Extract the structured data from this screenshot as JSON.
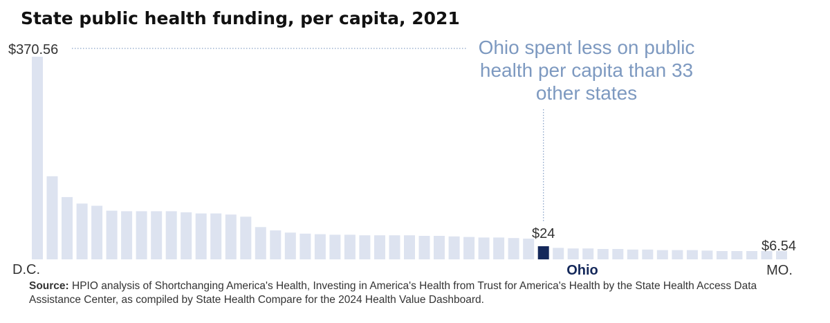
{
  "chart_data": {
    "type": "bar",
    "title": "State public health funding, per capita, 2021",
    "values": [
      370.56,
      152,
      114,
      102,
      98,
      89,
      88,
      88,
      88,
      88,
      86,
      84,
      84,
      82,
      78,
      59,
      53,
      49,
      47,
      46,
      45,
      45,
      44,
      44,
      44,
      44,
      43,
      43,
      42,
      41,
      40,
      40,
      39,
      38,
      24,
      21,
      20,
      20,
      19,
      19,
      18,
      18,
      17,
      17,
      17,
      16,
      15,
      15,
      14,
      13,
      6.54
    ],
    "highlight_index": 34,
    "labels": {
      "max_value": "$370.56",
      "min_value": "$6.54",
      "highlight_value": "$24",
      "first_category": "D.C.",
      "highlight_category": "Ohio",
      "last_category": "MO."
    },
    "annotation": [
      "Ohio spent less on public",
      "health per capita than 33",
      "other states"
    ],
    "colors": {
      "bar": "#dde3f0",
      "highlight": "#14285a",
      "annotation": "#7d99c0"
    }
  },
  "source": {
    "prefix": "Source:",
    "text": " HPIO analysis of Shortchanging America's Health, Investing in America's Health from Trust for America's Health by the State Health Access Data Assistance Center, as compiled by State Health Compare for the 2024 Health Value Dashboard."
  }
}
